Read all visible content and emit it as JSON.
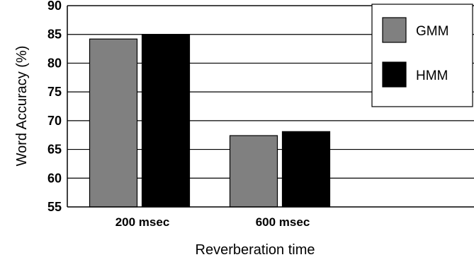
{
  "chart_data": {
    "type": "bar",
    "title": "",
    "xlabel": "Reverberation time",
    "ylabel": "Word Accuracy (%)",
    "ylim": [
      55,
      90
    ],
    "yticks": [
      55,
      60,
      65,
      70,
      75,
      80,
      85,
      90
    ],
    "categories": [
      "200 msec",
      "600 msec"
    ],
    "series": [
      {
        "name": "GMM",
        "values": [
          84.2,
          67.4
        ]
      },
      {
        "name": "HMM",
        "values": [
          85.0,
          68.1
        ]
      }
    ],
    "colors": {
      "GMM": "#808080",
      "HMM": "#000000"
    },
    "grid": true,
    "legend_position": "top-right"
  }
}
